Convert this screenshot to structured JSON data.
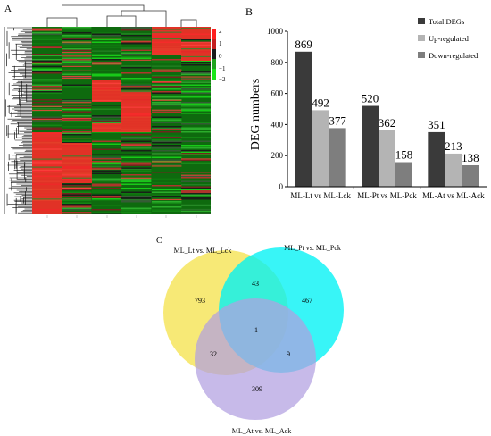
{
  "panel_a": {
    "letter": "A",
    "colorbar_ticks": [
      "2",
      "1",
      "0",
      "−1",
      "−2"
    ],
    "column_labels": [
      "",
      "",
      "",
      "",
      "",
      ""
    ],
    "colors": {
      "high": "#ff2a2a",
      "mid": "#1a1a1a",
      "low": "#19d419",
      "base": "#0e6a0e"
    }
  },
  "panel_b": {
    "letter": "B",
    "colors": {
      "total": "#3a3a3a",
      "up": "#b4b4b4",
      "down": "#7e7e7e"
    }
  },
  "panel_c": {
    "letter": "C",
    "sets": [
      "ML_Lt vs. ML_Lck",
      "ML_Pt vs. ML_Pck",
      "ML_At vs. ML_Ack"
    ],
    "regions": {
      "a_only": "793",
      "b_only": "467",
      "c_only": "309",
      "ab": "43",
      "ac": "32",
      "bc": "9",
      "abc": "1"
    },
    "colors": {
      "a": "#f6e55e",
      "b": "#00f2f5",
      "c": "#b2a0e0"
    }
  },
  "chart_data": {
    "type": "bar",
    "title": "",
    "xlabel": "",
    "ylabel": "DEG  numbers",
    "ylim": [
      0,
      1000
    ],
    "yticks": [
      "0",
      "200",
      "400",
      "600",
      "800",
      "1000"
    ],
    "categories": [
      "ML-Lt vs ML-Lck",
      "ML-Pt vs ML-Pck",
      "ML-At vs ML-Ack"
    ],
    "series": [
      {
        "name": "Total DEGs",
        "values": [
          869,
          520,
          351
        ],
        "labels": [
          "869",
          "520",
          "351"
        ]
      },
      {
        "name": "Up-regulated",
        "values": [
          492,
          362,
          213
        ],
        "labels": [
          "492",
          "362",
          "213"
        ]
      },
      {
        "name": "Down-regulated",
        "values": [
          377,
          158,
          138
        ],
        "labels": [
          "377",
          "158",
          "138"
        ]
      }
    ],
    "legend": "top-right",
    "grid": false
  }
}
